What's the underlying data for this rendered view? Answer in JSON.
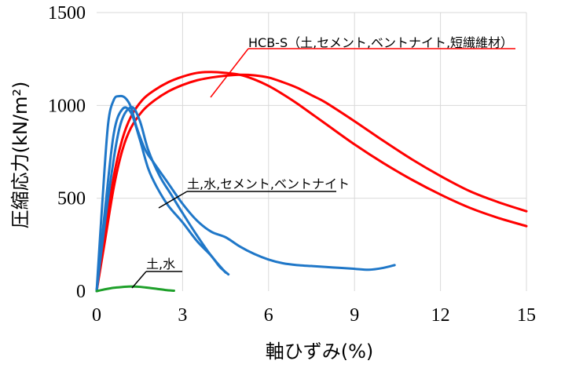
{
  "chart_data": {
    "type": "line",
    "title": "",
    "xlabel": "軸ひずみ(%)",
    "ylabel": "圧縮応力(kN/m²)",
    "xlim": [
      0,
      15
    ],
    "ylim": [
      0,
      1500
    ],
    "xticks": [
      0,
      3,
      6,
      9,
      12,
      15
    ],
    "yticks": [
      0,
      500,
      1000,
      1500
    ],
    "xtick_labels": [
      "0",
      "3",
      "6",
      "9",
      "12",
      "15"
    ],
    "ytick_labels": [
      "0",
      "500",
      "1000",
      "1500"
    ],
    "grid": "vertical and horizontal",
    "series": [
      {
        "color": "#ff0000",
        "x": [
          0,
          0.3,
          0.6,
          0.9,
          1.2,
          1.6,
          2,
          2.5,
          3,
          3.5,
          4,
          4.5,
          5,
          5.5,
          6,
          6.5,
          7,
          7.5,
          8,
          9,
          10,
          11,
          12,
          13,
          14,
          15
        ],
        "values": [
          0,
          320,
          620,
          820,
          940,
          1030,
          1080,
          1125,
          1155,
          1175,
          1180,
          1175,
          1165,
          1140,
          1105,
          1060,
          1010,
          955,
          900,
          790,
          690,
          600,
          520,
          450,
          395,
          350
        ]
      },
      {
        "color": "#ff0000",
        "x": [
          0,
          0.3,
          0.6,
          0.9,
          1.2,
          1.6,
          2,
          2.5,
          3,
          3.5,
          4,
          4.5,
          5,
          5.5,
          6,
          6.5,
          7,
          7.5,
          8,
          9,
          10,
          11,
          12,
          13,
          14,
          15
        ],
        "values": [
          0,
          280,
          560,
          760,
          880,
          970,
          1025,
          1075,
          1110,
          1135,
          1150,
          1160,
          1165,
          1162,
          1150,
          1125,
          1095,
          1055,
          1015,
          915,
          810,
          710,
          620,
          540,
          480,
          430
        ]
      },
      {
        "color": "#1f77c8",
        "x": [
          0,
          0.2,
          0.4,
          0.6,
          0.8,
          1,
          1.2,
          1.4,
          1.7,
          2,
          2.5,
          3,
          3.5,
          4,
          4.5,
          5,
          5.5,
          6,
          6.5,
          7,
          7.5,
          8,
          8.5,
          9,
          9.5,
          10,
          10.4
        ],
        "values": [
          0,
          480,
          900,
          1030,
          1050,
          1040,
          990,
          880,
          760,
          690,
          580,
          470,
          380,
          320,
          290,
          240,
          200,
          170,
          150,
          140,
          135,
          130,
          125,
          120,
          115,
          125,
          140
        ]
      },
      {
        "color": "#1f77c8",
        "x": [
          0,
          0.3,
          0.6,
          0.9,
          1.2,
          1.5,
          1.8,
          2.1,
          2.5,
          3,
          3.5,
          4,
          4.3,
          4.6
        ],
        "values": [
          0,
          450,
          850,
          980,
          960,
          820,
          660,
          560,
          460,
          370,
          270,
          190,
          130,
          90
        ]
      },
      {
        "color": "#1f77c8",
        "x": [
          0,
          0.4,
          0.8,
          1.2,
          1.5,
          1.8,
          2.2,
          2.6,
          3,
          3.5,
          4,
          4.5
        ],
        "values": [
          0,
          500,
          880,
          990,
          920,
          760,
          620,
          520,
          420,
          300,
          190,
          100
        ]
      },
      {
        "color": "#1ea02a",
        "x": [
          0,
          0.3,
          0.6,
          0.9,
          1.2,
          1.5,
          1.8,
          2.1,
          2.4,
          2.7
        ],
        "values": [
          0,
          10,
          18,
          22,
          25,
          23,
          18,
          12,
          6,
          2
        ]
      }
    ],
    "annotations": [
      {
        "text": "HCB-S（土,セメント,ベントナイト,短繊維材）",
        "color": "#ff0000"
      },
      {
        "text": "土,水,セメント,ベントナイト",
        "color": "#000000"
      },
      {
        "text": "土,水",
        "color": "#000000"
      }
    ]
  }
}
